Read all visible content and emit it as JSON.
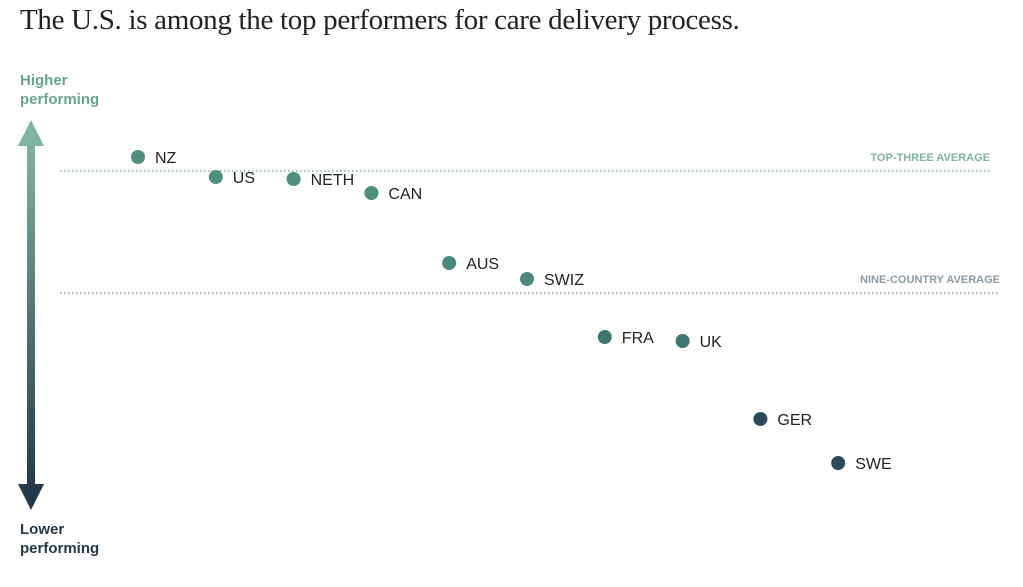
{
  "chart_data": {
    "type": "dot",
    "title": "The U.S. is among the top performers for care delivery process.",
    "y_top_label": "Higher performing",
    "y_bottom_label": "Lower performing",
    "categories": [
      "NZ",
      "US",
      "NETH",
      "CAN",
      "AUS",
      "SWIZ",
      "FRA",
      "UK",
      "GER",
      "SWE"
    ],
    "values": [
      0.68,
      0.58,
      0.57,
      0.5,
      0.15,
      0.07,
      -0.22,
      -0.24,
      -0.63,
      -0.85
    ],
    "colors": [
      "#4f8f7e",
      "#4f8f7e",
      "#4f8f7e",
      "#4f8f7e",
      "#4a8a7e",
      "#4a8a7e",
      "#3f7672",
      "#3f7672",
      "#2d4a58",
      "#2d4a58"
    ],
    "ylim": [
      -1.035,
      0.815
    ],
    "reference_lines": [
      {
        "label": "TOP-THREE AVERAGE",
        "value": 0.61,
        "color": "#7fb3a4"
      },
      {
        "label": "NINE-COUNTRY AVERAGE",
        "value": 0,
        "color": "#8c9aa3"
      }
    ]
  }
}
